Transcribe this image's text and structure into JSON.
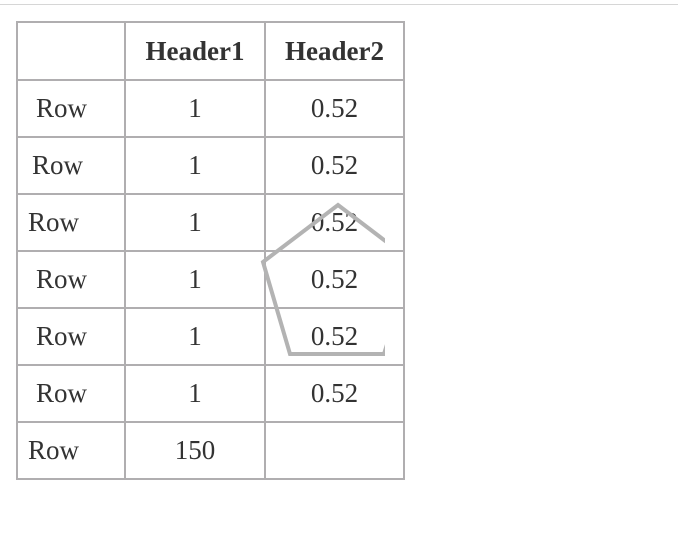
{
  "table": {
    "headers": [
      "",
      "Header1",
      "Header2"
    ],
    "rows": [
      {
        "label": "Row",
        "h1": "1",
        "h2": "0.52"
      },
      {
        "label": "Row",
        "h1": "1",
        "h2": "0.52"
      },
      {
        "label": "Row",
        "h1": "1",
        "h2": "0.52"
      },
      {
        "label": "Row",
        "h1": "1",
        "h2": "0.52"
      },
      {
        "label": "Row",
        "h1": "1",
        "h2": "0.52"
      },
      {
        "label": "Row",
        "h1": "1",
        "h2": "0.52"
      },
      {
        "label": "Row",
        "h1": "150",
        "h2": ""
      }
    ]
  },
  "overlay": {
    "shape": "pentagon-icon",
    "stroke_color": "#b3b3b3"
  }
}
